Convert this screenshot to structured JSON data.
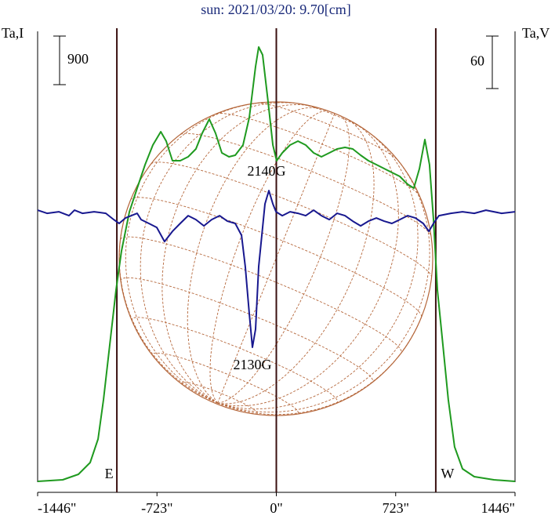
{
  "chart_data": {
    "type": "line",
    "title": "sun: 2021/03/20: 9.70[cm]",
    "ylabel": "Ta,I",
    "y2label": "Ta,V",
    "xlim": [
      -1446,
      1446
    ],
    "xticks": [
      {
        "value": -1446,
        "label": "-1446\""
      },
      {
        "value": -723,
        "label": "-723\""
      },
      {
        "value": 0,
        "label": "0\""
      },
      {
        "value": 723,
        "label": "723\""
      },
      {
        "value": 1446,
        "label": "1446\""
      }
    ],
    "ylim": [
      0,
      8683
    ],
    "y2lim": [
      -319,
      217
    ],
    "scale_bars": [
      {
        "axis": "y",
        "value": 900
      },
      {
        "axis": "y2",
        "value": 60
      }
    ],
    "limb_lines": [
      {
        "x": -966,
        "label": "E"
      },
      {
        "x": 966,
        "label": "W"
      }
    ],
    "annotations": [
      "2140G",
      "2130G"
    ],
    "series": [
      {
        "color": "#1f9a1f",
        "x": [
          -1446,
          -1294,
          -1199,
          -1128,
          -1080,
          -1047,
          -1009,
          -971,
          -938,
          -890,
          -843,
          -795,
          -748,
          -700,
          -667,
          -629,
          -582,
          -534,
          -487,
          -449,
          -406,
          -368,
          -330,
          -287,
          -249,
          -202,
          -164,
          -126,
          -107,
          -83,
          -50,
          -21,
          2,
          36,
          83,
          131,
          178,
          226,
          273,
          321,
          368,
          416,
          463,
          511,
          558,
          606,
          653,
          700,
          748,
          795,
          833,
          867,
          900,
          928,
          952,
          976,
          1009,
          1042,
          1080,
          1128,
          1199,
          1318,
          1446
        ],
        "values": [
          203,
          232,
          334,
          552,
          987,
          1713,
          2730,
          3746,
          4472,
          5198,
          5634,
          6069,
          6432,
          6679,
          6505,
          6142,
          6142,
          6215,
          6360,
          6650,
          6912,
          6650,
          6287,
          6215,
          6244,
          6432,
          6941,
          7884,
          8247,
          8102,
          7231,
          6432,
          6142,
          6287,
          6432,
          6505,
          6432,
          6287,
          6215,
          6287,
          6360,
          6389,
          6360,
          6244,
          6142,
          6069,
          5997,
          5924,
          5852,
          5706,
          5634,
          5997,
          6534,
          6069,
          5053,
          3746,
          2730,
          1713,
          842,
          436,
          290,
          232,
          203
        ]
      },
      {
        "color": "#18188f",
        "axis": "y2",
        "x": [
          -1446,
          -1389,
          -1318,
          -1256,
          -1223,
          -1175,
          -1104,
          -1033,
          -985,
          -952,
          -914,
          -843,
          -819,
          -772,
          -724,
          -677,
          -629,
          -582,
          -534,
          -487,
          -439,
          -392,
          -344,
          -297,
          -249,
          -211,
          -188,
          -164,
          -145,
          -126,
          -107,
          -88,
          -69,
          -45,
          -21,
          -2,
          36,
          83,
          131,
          178,
          226,
          273,
          321,
          368,
          416,
          463,
          511,
          558,
          606,
          653,
          700,
          748,
          795,
          843,
          890,
          924,
          952,
          985,
          1057,
          1128,
          1199,
          1270,
          1365,
          1446
        ],
        "values": [
          3.6,
          0,
          1.8,
          -2.7,
          3.6,
          0,
          1.8,
          0,
          -7.2,
          -11.6,
          -5.4,
          0,
          -7.2,
          -11.6,
          -16.1,
          -32.3,
          -20.6,
          -11.6,
          -2.7,
          -7.2,
          -14.3,
          -7.2,
          -2.7,
          -9.0,
          -11.6,
          -25.1,
          -60.9,
          -114.7,
          -153.2,
          -132.6,
          -60.9,
          -25.1,
          10.8,
          26.0,
          10.8,
          1.8,
          -2.7,
          1.8,
          0,
          -2.7,
          3.6,
          -2.7,
          -7.2,
          0,
          -2.7,
          -9.0,
          -14.3,
          -9.0,
          -5.4,
          -9.0,
          -11.6,
          -7.2,
          -2.7,
          -5.4,
          -11.6,
          -20.6,
          -11.6,
          -2.7,
          0,
          1.8,
          0,
          3.6,
          0,
          1.8
        ]
      }
    ]
  }
}
